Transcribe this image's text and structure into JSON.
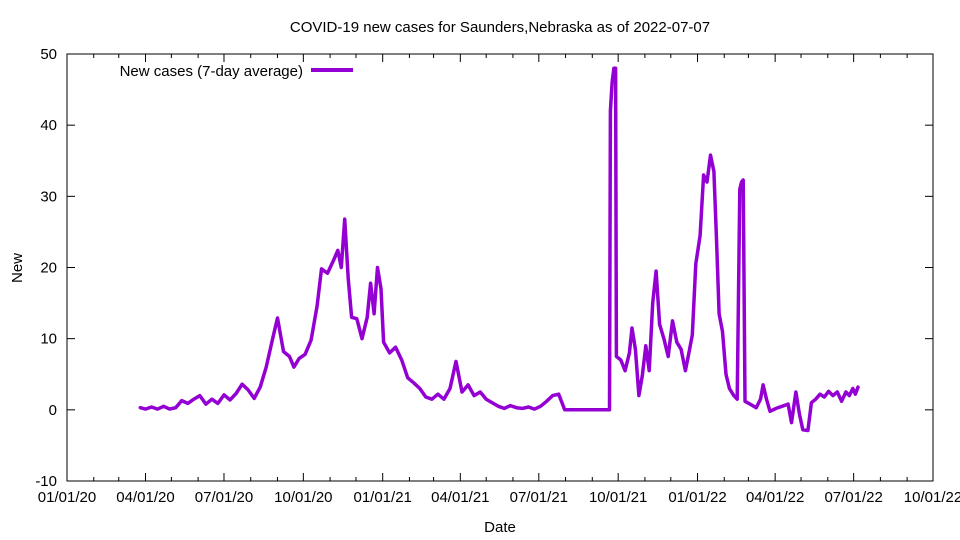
{
  "chart_data": {
    "type": "line",
    "title": "COVID-19 new cases for Saunders,Nebraska as of 2022-07-07",
    "xlabel": "Date",
    "ylabel": "New",
    "xlim": [
      "2020-01-01",
      "2022-10-01"
    ],
    "ylim": [
      -10,
      50
    ],
    "x_ticks": [
      {
        "date": "2020-01-01",
        "label": "01/01/20"
      },
      {
        "date": "2020-04-01",
        "label": "04/01/20"
      },
      {
        "date": "2020-07-01",
        "label": "07/01/20"
      },
      {
        "date": "2020-10-01",
        "label": "10/01/20"
      },
      {
        "date": "2021-01-01",
        "label": "01/01/21"
      },
      {
        "date": "2021-04-01",
        "label": "04/01/21"
      },
      {
        "date": "2021-07-01",
        "label": "07/01/21"
      },
      {
        "date": "2021-10-01",
        "label": "10/01/21"
      },
      {
        "date": "2022-01-01",
        "label": "01/01/22"
      },
      {
        "date": "2022-04-01",
        "label": "04/01/22"
      },
      {
        "date": "2022-07-01",
        "label": "07/01/22"
      },
      {
        "date": "2022-10-01",
        "label": "10/01/22"
      }
    ],
    "y_ticks": [
      -10,
      0,
      10,
      20,
      30,
      40,
      50
    ],
    "grid": false,
    "legend_position": "top-left",
    "series": [
      {
        "name": "New cases (7-day average)",
        "color": "#9400d3",
        "points": [
          [
            "2020-03-26",
            0.3
          ],
          [
            "2020-04-01",
            0.1
          ],
          [
            "2020-04-08",
            0.4
          ],
          [
            "2020-04-15",
            0.1
          ],
          [
            "2020-04-22",
            0.5
          ],
          [
            "2020-04-29",
            0.1
          ],
          [
            "2020-05-06",
            0.3
          ],
          [
            "2020-05-13",
            1.3
          ],
          [
            "2020-05-20",
            0.9
          ],
          [
            "2020-05-27",
            1.5
          ],
          [
            "2020-06-03",
            2.0
          ],
          [
            "2020-06-10",
            0.8
          ],
          [
            "2020-06-17",
            1.5
          ],
          [
            "2020-06-24",
            0.9
          ],
          [
            "2020-07-01",
            2.1
          ],
          [
            "2020-07-08",
            1.4
          ],
          [
            "2020-07-15",
            2.3
          ],
          [
            "2020-07-22",
            3.6
          ],
          [
            "2020-07-29",
            2.8
          ],
          [
            "2020-08-05",
            1.6
          ],
          [
            "2020-08-12",
            3.2
          ],
          [
            "2020-08-19",
            6.0
          ],
          [
            "2020-08-26",
            9.8
          ],
          [
            "2020-09-01",
            12.9
          ],
          [
            "2020-09-08",
            8.2
          ],
          [
            "2020-09-15",
            7.5
          ],
          [
            "2020-09-20",
            6.0
          ],
          [
            "2020-09-26",
            7.2
          ],
          [
            "2020-10-03",
            7.8
          ],
          [
            "2020-10-10",
            9.8
          ],
          [
            "2020-10-17",
            14.6
          ],
          [
            "2020-10-22",
            19.8
          ],
          [
            "2020-10-29",
            19.2
          ],
          [
            "2020-11-05",
            21.0
          ],
          [
            "2020-11-10",
            22.4
          ],
          [
            "2020-11-14",
            20.0
          ],
          [
            "2020-11-18",
            26.8
          ],
          [
            "2020-11-22",
            18.5
          ],
          [
            "2020-11-26",
            13.0
          ],
          [
            "2020-12-02",
            12.8
          ],
          [
            "2020-12-08",
            10.0
          ],
          [
            "2020-12-14",
            13.0
          ],
          [
            "2020-12-18",
            17.8
          ],
          [
            "2020-12-22",
            13.5
          ],
          [
            "2020-12-26",
            20.0
          ],
          [
            "2020-12-30",
            17.0
          ],
          [
            "2021-01-02",
            9.5
          ],
          [
            "2021-01-09",
            8.0
          ],
          [
            "2021-01-16",
            8.8
          ],
          [
            "2021-01-23",
            7.0
          ],
          [
            "2021-01-30",
            4.5
          ],
          [
            "2021-02-06",
            3.8
          ],
          [
            "2021-02-13",
            3.0
          ],
          [
            "2021-02-20",
            1.8
          ],
          [
            "2021-02-27",
            1.5
          ],
          [
            "2021-03-06",
            2.2
          ],
          [
            "2021-03-13",
            1.5
          ],
          [
            "2021-03-20",
            3.0
          ],
          [
            "2021-03-27",
            6.8
          ],
          [
            "2021-04-03",
            2.5
          ],
          [
            "2021-04-10",
            3.5
          ],
          [
            "2021-04-17",
            2.0
          ],
          [
            "2021-04-24",
            2.5
          ],
          [
            "2021-05-01",
            1.5
          ],
          [
            "2021-05-08",
            1.0
          ],
          [
            "2021-05-15",
            0.5
          ],
          [
            "2021-05-22",
            0.2
          ],
          [
            "2021-05-29",
            0.6
          ],
          [
            "2021-06-05",
            0.3
          ],
          [
            "2021-06-12",
            0.2
          ],
          [
            "2021-06-19",
            0.4
          ],
          [
            "2021-06-26",
            0.1
          ],
          [
            "2021-07-03",
            0.5
          ],
          [
            "2021-07-10",
            1.2
          ],
          [
            "2021-07-17",
            2.0
          ],
          [
            "2021-07-24",
            2.2
          ],
          [
            "2021-07-31",
            0.0
          ],
          [
            "2021-08-31",
            0.0
          ],
          [
            "2021-09-21",
            0.0
          ],
          [
            "2021-09-22",
            42.0
          ],
          [
            "2021-09-24",
            46.0
          ],
          [
            "2021-09-26",
            48.0
          ],
          [
            "2021-09-28",
            48.0
          ],
          [
            "2021-09-29",
            7.5
          ],
          [
            "2021-10-04",
            7.0
          ],
          [
            "2021-10-09",
            5.5
          ],
          [
            "2021-10-14",
            8.0
          ],
          [
            "2021-10-17",
            11.5
          ],
          [
            "2021-10-21",
            8.5
          ],
          [
            "2021-10-25",
            2.0
          ],
          [
            "2021-10-29",
            4.8
          ],
          [
            "2021-11-02",
            9.0
          ],
          [
            "2021-11-06",
            5.5
          ],
          [
            "2021-11-10",
            15.0
          ],
          [
            "2021-11-14",
            19.5
          ],
          [
            "2021-11-18",
            12.0
          ],
          [
            "2021-11-23",
            10.0
          ],
          [
            "2021-11-28",
            7.5
          ],
          [
            "2021-12-03",
            12.5
          ],
          [
            "2021-12-08",
            9.5
          ],
          [
            "2021-12-13",
            8.5
          ],
          [
            "2021-12-18",
            5.5
          ],
          [
            "2021-12-22",
            8.0
          ],
          [
            "2021-12-26",
            10.5
          ],
          [
            "2021-12-30",
            20.5
          ],
          [
            "2022-01-04",
            24.5
          ],
          [
            "2022-01-08",
            33.0
          ],
          [
            "2022-01-12",
            32.0
          ],
          [
            "2022-01-16",
            35.8
          ],
          [
            "2022-01-20",
            33.5
          ],
          [
            "2022-01-23",
            24.0
          ],
          [
            "2022-01-26",
            13.5
          ],
          [
            "2022-01-30",
            11.0
          ],
          [
            "2022-02-03",
            5.0
          ],
          [
            "2022-02-07",
            3.0
          ],
          [
            "2022-02-12",
            2.0
          ],
          [
            "2022-02-16",
            1.5
          ],
          [
            "2022-02-19",
            31.0
          ],
          [
            "2022-02-21",
            32.0
          ],
          [
            "2022-02-23",
            32.3
          ],
          [
            "2022-02-25",
            1.2
          ],
          [
            "2022-03-03",
            0.8
          ],
          [
            "2022-03-10",
            0.3
          ],
          [
            "2022-03-15",
            1.5
          ],
          [
            "2022-03-18",
            3.5
          ],
          [
            "2022-03-22",
            1.5
          ],
          [
            "2022-03-26",
            -0.2
          ],
          [
            "2022-04-02",
            0.2
          ],
          [
            "2022-04-09",
            0.5
          ],
          [
            "2022-04-16",
            0.8
          ],
          [
            "2022-04-20",
            -1.8
          ],
          [
            "2022-04-25",
            2.5
          ],
          [
            "2022-04-29",
            -0.5
          ],
          [
            "2022-05-03",
            -2.8
          ],
          [
            "2022-05-09",
            -2.9
          ],
          [
            "2022-05-13",
            1.0
          ],
          [
            "2022-05-18",
            1.5
          ],
          [
            "2022-05-23",
            2.2
          ],
          [
            "2022-05-28",
            1.8
          ],
          [
            "2022-06-02",
            2.6
          ],
          [
            "2022-06-07",
            2.0
          ],
          [
            "2022-06-12",
            2.5
          ],
          [
            "2022-06-17",
            1.2
          ],
          [
            "2022-06-22",
            2.5
          ],
          [
            "2022-06-26",
            2.0
          ],
          [
            "2022-06-30",
            3.0
          ],
          [
            "2022-07-03",
            2.2
          ],
          [
            "2022-07-06",
            3.2
          ]
        ]
      }
    ]
  }
}
